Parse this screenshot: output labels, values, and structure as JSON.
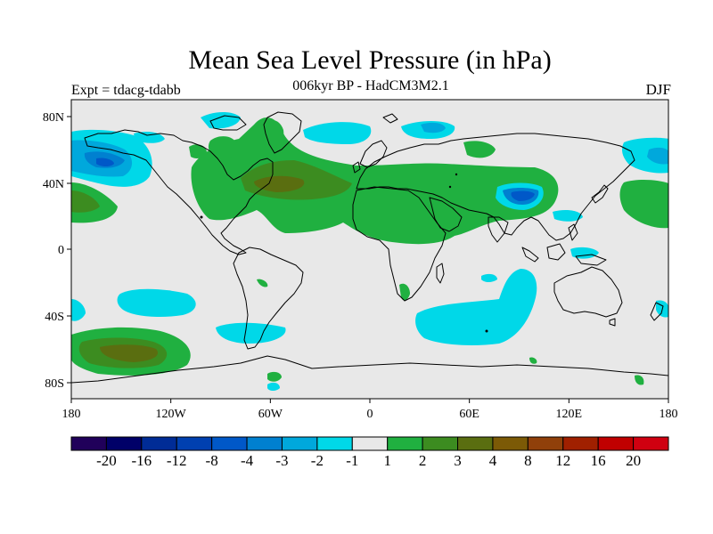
{
  "header": {
    "title": "Mean Sea Level Pressure (in hPa)",
    "subtitle": "006kyr BP - HadCM3M2.1",
    "experiment": "Expt = tdacg-tdabb",
    "season": "DJF"
  },
  "map": {
    "x_ticks": [
      "180",
      "120W",
      "60W",
      "0",
      "60E",
      "120E",
      "180"
    ],
    "y_ticks": [
      "80N",
      "40N",
      "0",
      "40S",
      "80S"
    ]
  },
  "legend": {
    "colors": [
      "#20005a",
      "#000068",
      "#002c96",
      "#0040b0",
      "#0058c8",
      "#0080d0",
      "#00a8dc",
      "#00d8e8",
      "#e8e8e8",
      "#20b040",
      "#3c8c20",
      "#5a6e10",
      "#7c5a06",
      "#90400a",
      "#a02000",
      "#c00000",
      "#d00010"
    ],
    "labels": [
      "-20",
      "-16",
      "-12",
      "-8",
      "-4",
      "-3",
      "-2",
      "-1",
      "1",
      "2",
      "3",
      "4",
      "8",
      "12",
      "16",
      "20"
    ]
  },
  "colors": {
    "land_background": "#e8e8e8",
    "cyan": "#00d8e8",
    "light_blue": "#00a8dc",
    "mid_blue": "#0080d0",
    "blue": "#0058c8",
    "green": "#20b040",
    "dark_green": "#3c8c20",
    "olive": "#5a6e10",
    "brown": "#7c5a06"
  }
}
